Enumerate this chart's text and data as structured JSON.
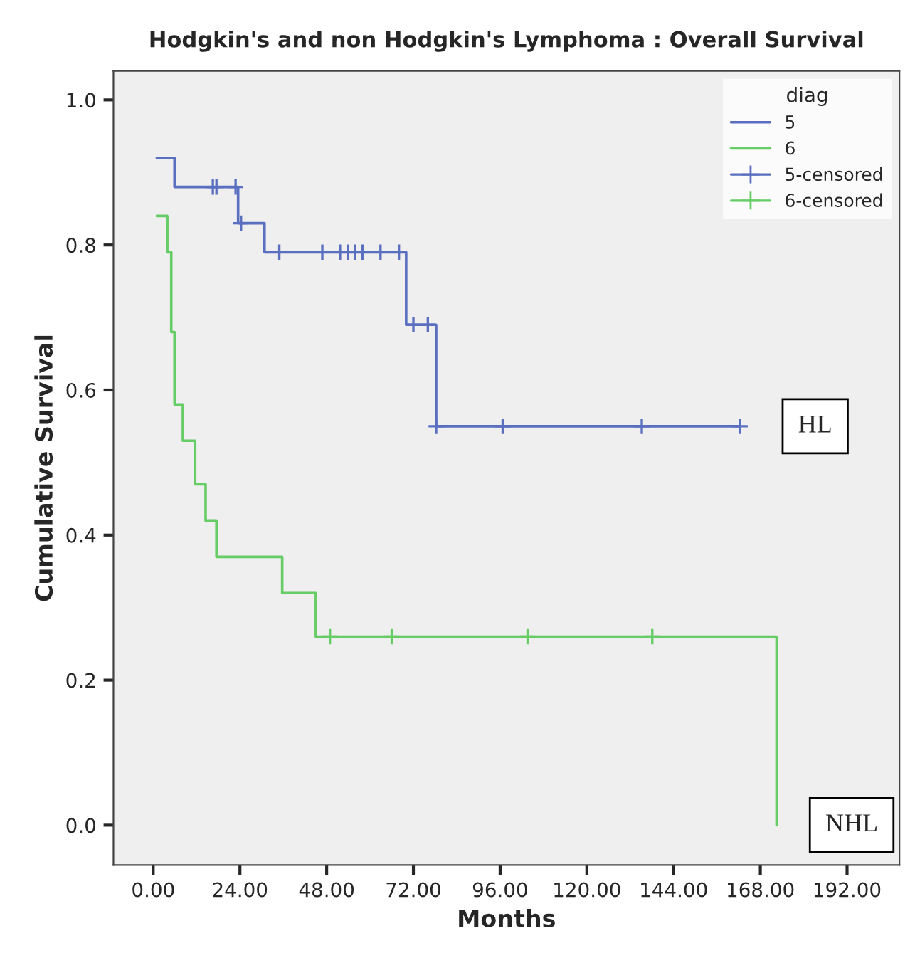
{
  "chart_data": {
    "type": "step",
    "title": "Hodgkin's and non Hodgkin's Lymphoma : Overall Survival",
    "xlabel": "Months",
    "ylabel": "Cumulative Survival",
    "legend_title": "diag",
    "series": [
      {
        "name": "5",
        "color": "#5a6fc0",
        "x": [
          1,
          5.9,
          23.5,
          30.8,
          70,
          78.3,
          162.4
        ],
        "values": [
          0.92,
          0.88,
          0.83,
          0.79,
          0.69,
          0.55,
          0.55
        ]
      },
      {
        "name": "6",
        "color": "#66cc66",
        "x": [
          1,
          3.9,
          5,
          5.9,
          8.2,
          11.6,
          14.5,
          17.5,
          35.7,
          45,
          172.5
        ],
        "values": [
          0.84,
          0.79,
          0.68,
          0.58,
          0.53,
          0.47,
          0.42,
          0.37,
          0.32,
          0.26,
          0
        ]
      },
      {
        "name": "5-censored",
        "type": "scatter",
        "marker": "cross",
        "color": "#5a6fc0",
        "x": [
          16.5,
          17.5,
          22.8,
          24.3,
          34.9,
          46.8,
          51.7,
          53.9,
          55.9,
          57.9,
          62.9,
          68,
          72,
          76,
          78.3,
          96.7,
          135.2,
          162.4
        ],
        "values": [
          0.88,
          0.88,
          0.88,
          0.83,
          0.79,
          0.79,
          0.79,
          0.79,
          0.79,
          0.79,
          0.79,
          0.79,
          0.69,
          0.69,
          0.55,
          0.55,
          0.55,
          0.55
        ]
      },
      {
        "name": "6-censored",
        "type": "scatter",
        "marker": "cross",
        "color": "#66cc66",
        "x": [
          48.9,
          66,
          103.6,
          138.1
        ],
        "values": [
          0.26,
          0.26,
          0.26,
          0.26
        ]
      }
    ],
    "xlim": [
      -11,
      206.5
    ],
    "ylim": [
      -0.055,
      1.04
    ],
    "xticks": [
      {
        "value": 0,
        "label": "0.00"
      },
      {
        "value": 24,
        "label": "24.00"
      },
      {
        "value": 48,
        "label": "48.00"
      },
      {
        "value": 72,
        "label": "72.00"
      },
      {
        "value": 96,
        "label": "96.00"
      },
      {
        "value": 120,
        "label": "120.00"
      },
      {
        "value": 144,
        "label": "144.00"
      },
      {
        "value": 168,
        "label": "168.00"
      },
      {
        "value": 192,
        "label": "192.00"
      }
    ],
    "yticks": [
      {
        "value": 0,
        "label": "0.0"
      },
      0.2,
      0.4,
      0.6,
      0.8,
      {
        "value": 1,
        "label": "1.0"
      }
    ],
    "annotations": [
      "HL",
      "NHL"
    ],
    "grid": false,
    "legend": "top right"
  }
}
